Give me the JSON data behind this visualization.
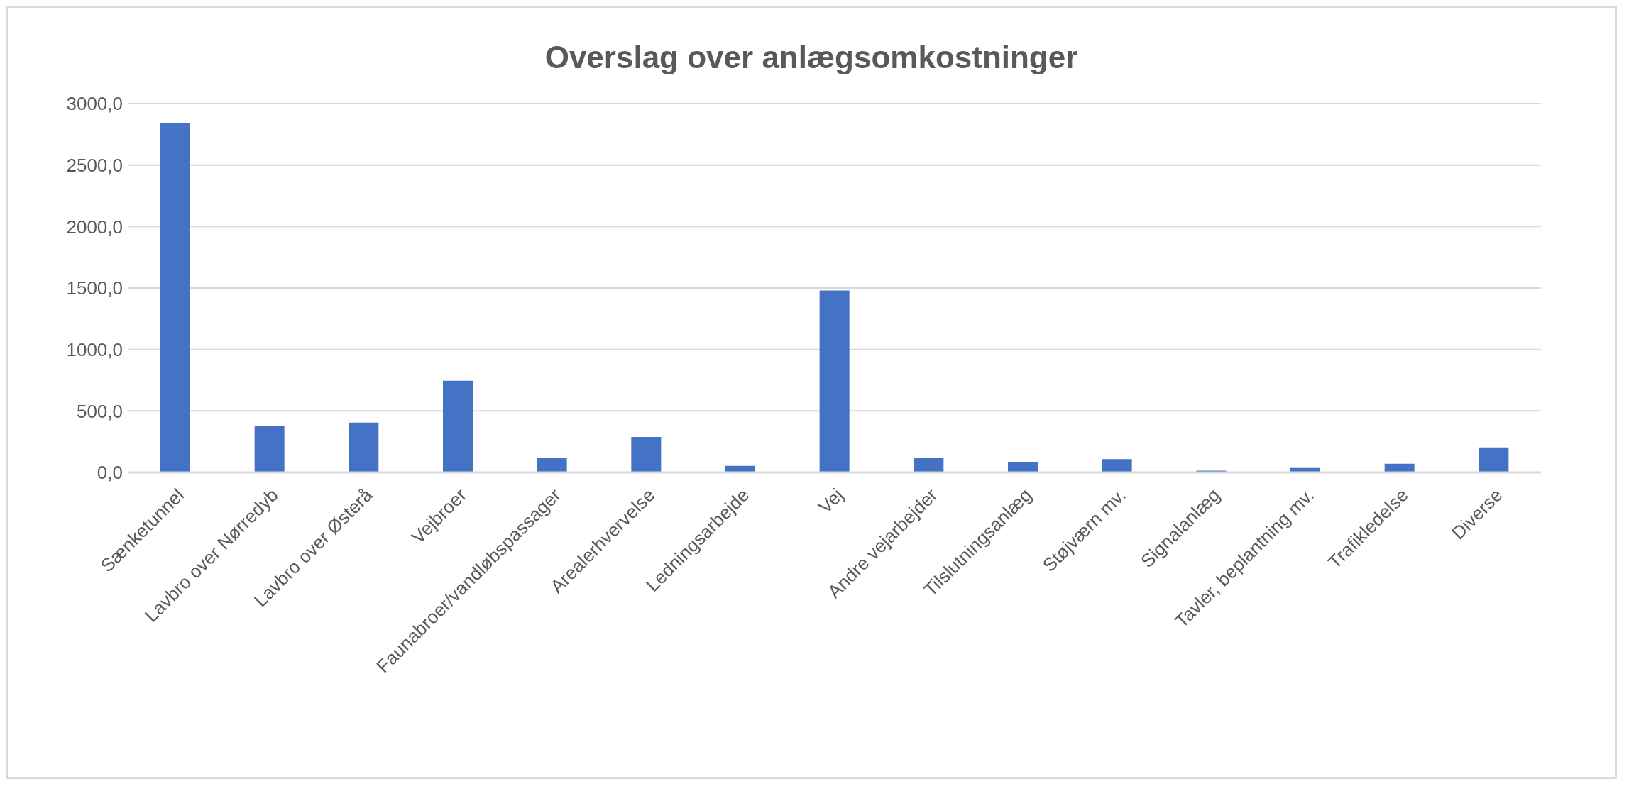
{
  "chart_data": {
    "type": "bar",
    "title": "Overslag over anlægsomkostninger",
    "categories": [
      "Sænketunnel",
      "Lavbro over Nørredyb",
      "Lavbro over Østerå",
      "Vejbroer",
      "Faunabroer/vandløbspassager",
      "Arealerhvervelse",
      "Ledningsarbejde",
      "Vej",
      "Andre vejarbejder",
      "Tilslutningsanlæg",
      "Støjværn mv.",
      "Signalanlæg",
      "Tavler, beplantning mv.",
      "Trafikledelse",
      "Diverse"
    ],
    "values": [
      2840,
      380,
      405,
      745,
      117,
      288,
      54,
      1480,
      120,
      87,
      108,
      15,
      42,
      71,
      204
    ],
    "color": "#4472c4",
    "ylim": [
      0,
      3000
    ],
    "yticks": [
      {
        "value": 0,
        "label": "0,0"
      },
      {
        "value": 500,
        "label": "500,0"
      },
      {
        "value": 1000,
        "label": "1000,0"
      },
      {
        "value": 1500,
        "label": "1500,0"
      },
      {
        "value": 2000,
        "label": "2000,0"
      },
      {
        "value": 2500,
        "label": "2500,0"
      },
      {
        "value": 3000,
        "label": "3000,0"
      }
    ],
    "grid": "y"
  }
}
